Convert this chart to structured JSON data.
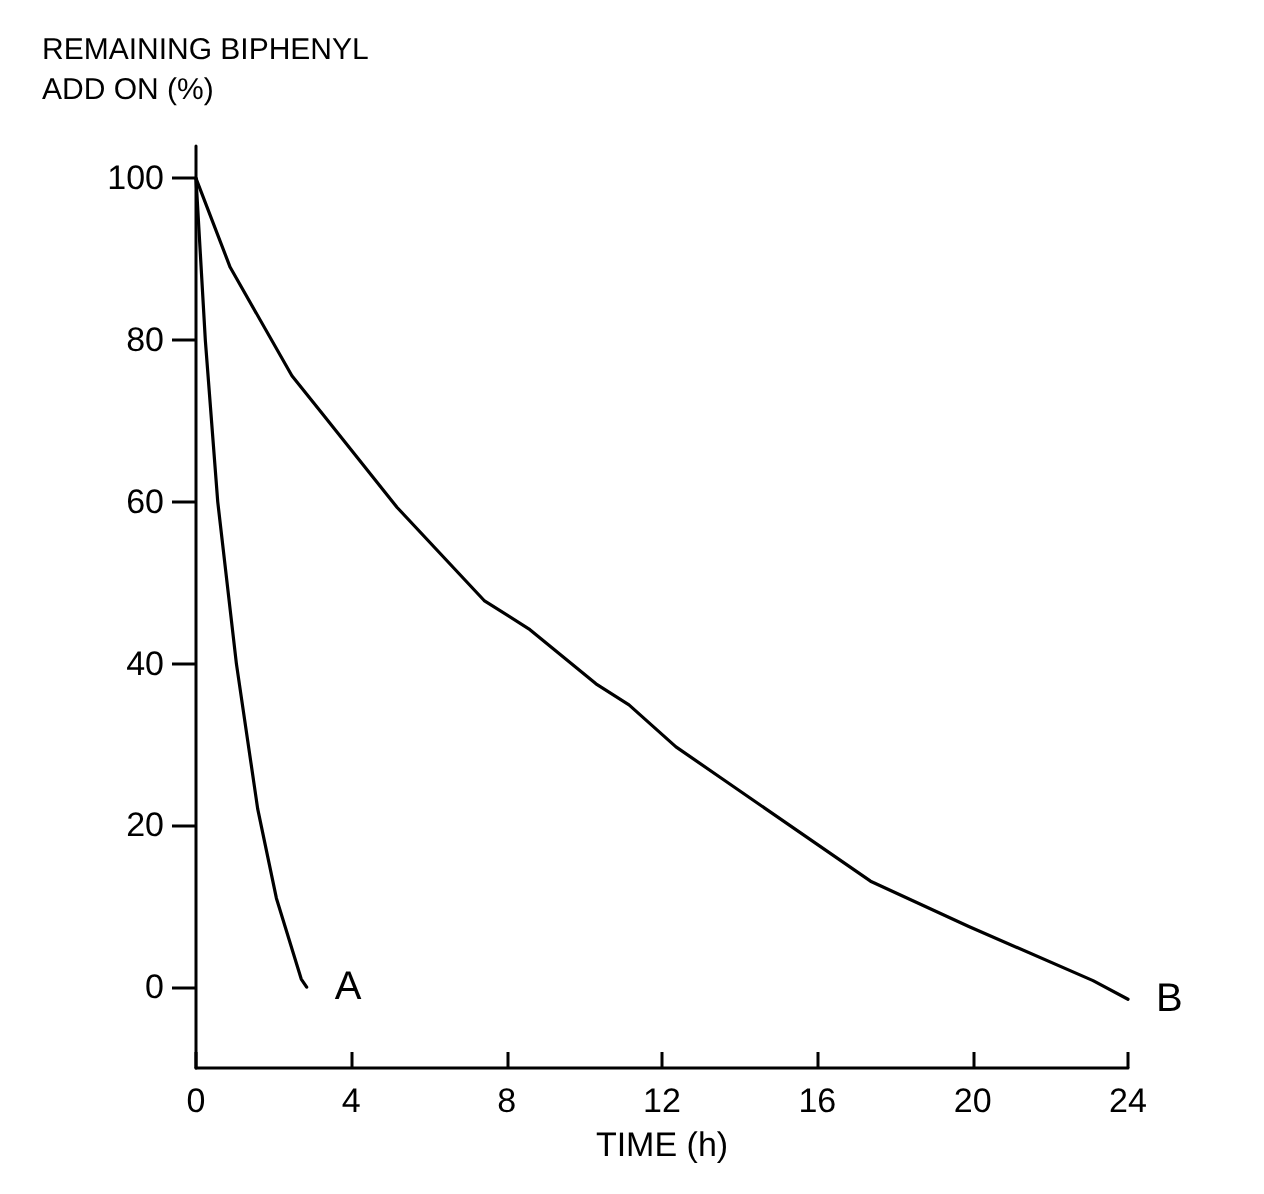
{
  "chart_data": {
    "type": "line",
    "ylabel": "REMAINING BIPHENYL\nADD ON (%)",
    "xlabel": "TIME (h)",
    "xlim": [
      0,
      24
    ],
    "xticks": [
      0,
      4,
      8,
      12,
      16,
      20,
      24
    ],
    "ylim": [
      -10,
      104
    ],
    "yticks": [
      0,
      20,
      40,
      60,
      80,
      100
    ],
    "grid": false,
    "legend": false,
    "marker": "none",
    "line_style": "solid",
    "series": [
      {
        "name": "A",
        "color": "#000000",
        "x": [
          0,
          0.24,
          0.56,
          1.04,
          1.59,
          2.07,
          2.71,
          2.85
        ],
        "values": [
          100,
          80,
          60,
          40,
          22,
          11,
          1,
          0
        ]
      },
      {
        "name": "B",
        "color": "#000000",
        "x": [
          0,
          0.88,
          2.47,
          3.27,
          5.18,
          7.42,
          8.6,
          10.3,
          11.15,
          12.36,
          13.54,
          17.37,
          19.9,
          23.1,
          24
        ],
        "values": [
          100,
          89,
          75.6,
          70.8,
          59.3,
          47.8,
          44.2,
          37.5,
          34.9,
          29.7,
          25.8,
          13.1,
          7.5,
          0.8,
          -1.5
        ]
      }
    ]
  }
}
